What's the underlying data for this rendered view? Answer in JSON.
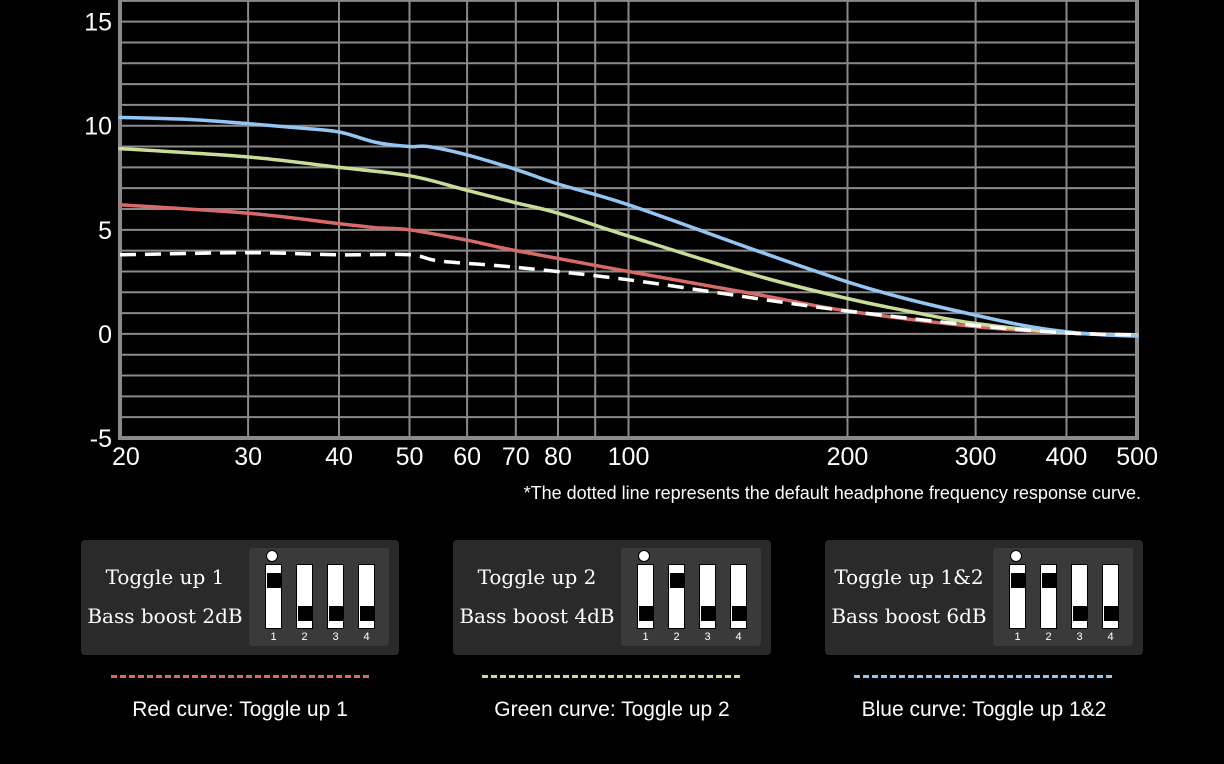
{
  "chart_data": {
    "type": "line",
    "title": "",
    "xlabel": "",
    "ylabel": "",
    "x_scale": "log",
    "xlim": [
      20,
      500
    ],
    "ylim": [
      -5,
      17
    ],
    "x_ticks": [
      20,
      30,
      40,
      50,
      60,
      70,
      80,
      100,
      200,
      300,
      400,
      500
    ],
    "x_tick_labels": [
      "20",
      "30",
      "40",
      "50",
      "60",
      "70",
      "80",
      "100",
      "200",
      "300",
      "400",
      "500"
    ],
    "y_ticks": [
      -5,
      0,
      5,
      10,
      15
    ],
    "y_tick_labels": [
      "-5",
      "0",
      "5",
      "10",
      "15"
    ],
    "grid": true,
    "series": [
      {
        "name": "Default",
        "color": "#ffffff",
        "dashed": true,
        "x": [
          20,
          30,
          40,
          50,
          55,
          70,
          100,
          150,
          200,
          300,
          400,
          500
        ],
        "y": [
          3.8,
          3.9,
          3.8,
          3.8,
          3.5,
          3.2,
          2.6,
          1.7,
          1.1,
          0.4,
          0.05,
          -0.05
        ]
      },
      {
        "name": "Red curve",
        "color": "#d86a6a",
        "dashed": false,
        "x": [
          20,
          30,
          40,
          45,
          50,
          60,
          70,
          100,
          150,
          200,
          300,
          400,
          500
        ],
        "y": [
          6.2,
          5.8,
          5.3,
          5.1,
          5.0,
          4.5,
          4.0,
          3.0,
          1.9,
          1.1,
          0.35,
          0.05,
          -0.05
        ]
      },
      {
        "name": "Green curve",
        "color": "#c9dd96",
        "dashed": false,
        "x": [
          20,
          30,
          40,
          50,
          60,
          70,
          80,
          100,
          150,
          200,
          250,
          300,
          400,
          500
        ],
        "y": [
          8.9,
          8.5,
          8.0,
          7.6,
          6.9,
          6.3,
          5.8,
          4.7,
          2.8,
          1.7,
          1.0,
          0.5,
          0.05,
          -0.05
        ]
      },
      {
        "name": "Blue curve",
        "color": "#93c6f3",
        "dashed": false,
        "x": [
          20,
          25,
          30,
          35,
          40,
          45,
          50,
          53,
          60,
          70,
          80,
          100,
          150,
          200,
          240,
          300,
          350,
          400,
          450,
          500
        ],
        "y": [
          10.4,
          10.3,
          10.1,
          9.9,
          9.7,
          9.2,
          9.0,
          9.0,
          8.6,
          7.9,
          7.2,
          6.2,
          4.0,
          2.5,
          1.7,
          0.9,
          0.4,
          0.1,
          -0.05,
          -0.1
        ]
      }
    ]
  },
  "note": "*The dotted line represents the default headphone frequency response curve.",
  "cards": [
    {
      "line1": "Toggle up 1",
      "line2": "Bass boost 2dB",
      "switches": [
        "up",
        "down",
        "down",
        "down"
      ],
      "switch_numbers": [
        "1",
        "2",
        "3",
        "4"
      ],
      "legend_label": "Red curve: Toggle up 1",
      "legend_color": "#d86a6a"
    },
    {
      "line1": "Toggle up 2",
      "line2": "Bass boost 4dB",
      "switches": [
        "down",
        "up",
        "down",
        "down"
      ],
      "switch_numbers": [
        "1",
        "2",
        "3",
        "4"
      ],
      "legend_label": "Green curve: Toggle up 2",
      "legend_color": "#c9dd96"
    },
    {
      "line1": "Toggle up 1&2",
      "line2": "Bass boost 6dB",
      "switches": [
        "up",
        "up",
        "down",
        "down"
      ],
      "switch_numbers": [
        "1",
        "2",
        "3",
        "4"
      ],
      "legend_label": "Blue curve: Toggle up 1&2",
      "legend_color": "#93c6f3"
    }
  ]
}
